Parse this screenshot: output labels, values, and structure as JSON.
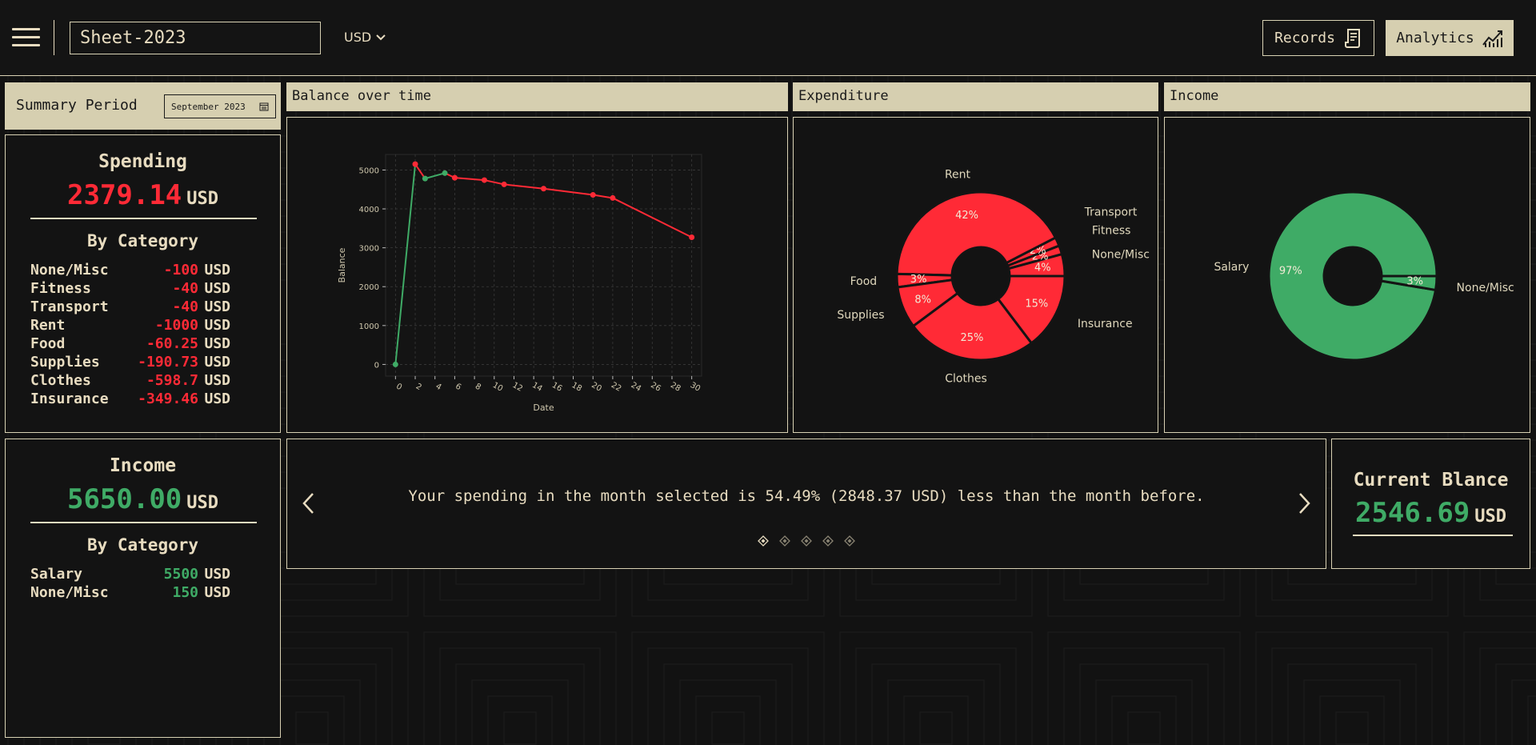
{
  "header": {
    "sheet_name": "Sheet-2023",
    "currency": "USD",
    "records_label": "Records",
    "analytics_label": "Analytics"
  },
  "summary": {
    "period_label": "Summary Period",
    "period_value": "September 2023"
  },
  "spending": {
    "title": "Spending",
    "amount": "2379.14",
    "unit": "USD",
    "by_category_label": "By Category",
    "categories": [
      {
        "name": "None/Misc",
        "value": "-100",
        "unit": "USD"
      },
      {
        "name": "Fitness",
        "value": "-40",
        "unit": "USD"
      },
      {
        "name": "Transport",
        "value": "-40",
        "unit": "USD"
      },
      {
        "name": "Rent",
        "value": "-1000",
        "unit": "USD"
      },
      {
        "name": "Food",
        "value": "-60.25",
        "unit": "USD"
      },
      {
        "name": "Supplies",
        "value": "-190.73",
        "unit": "USD"
      },
      {
        "name": "Clothes",
        "value": "-598.7",
        "unit": "USD"
      },
      {
        "name": "Insurance",
        "value": "-349.46",
        "unit": "USD"
      }
    ]
  },
  "income": {
    "title": "Income",
    "amount": "5650.00",
    "unit": "USD",
    "by_category_label": "By Category",
    "categories": [
      {
        "name": "Salary",
        "value": "5500",
        "unit": "USD"
      },
      {
        "name": "None/Misc",
        "value": "150",
        "unit": "USD"
      }
    ]
  },
  "panels": {
    "balance_title": "Balance over time",
    "expenditure_title": "Expenditure",
    "income_title": "Income"
  },
  "insight": {
    "text": "Your spending in the month selected is 54.49% (2848.37 USD) less than the month before.",
    "slide_count": 5,
    "active_slide": 0
  },
  "current_balance": {
    "title": "Current Blance",
    "amount": "2546.69",
    "unit": "USD"
  },
  "colors": {
    "accent": "#d6cfb0",
    "negative": "#ff2a36",
    "positive": "#3fab66",
    "background": "#121212"
  },
  "icons": {
    "menu": "hamburger-icon",
    "currency": "chevron-down-icon",
    "records": "receipt-icon",
    "analytics": "line-chart-icon",
    "period": "calendar-icon",
    "prev": "chevron-left-icon",
    "next": "chevron-right-icon"
  },
  "chart_data": [
    {
      "type": "line",
      "xlabel": "Date",
      "ylabel": "Balance",
      "xlim": [
        -1,
        31
      ],
      "ylim": [
        -300,
        5400
      ],
      "xticks": [
        0,
        2,
        4,
        6,
        8,
        10,
        12,
        14,
        16,
        18,
        20,
        22,
        24,
        26,
        28,
        30
      ],
      "yticks": [
        0,
        1000,
        2000,
        3000,
        4000,
        5000
      ],
      "grid": true,
      "points": [
        {
          "x": 0,
          "y": 0,
          "color": "green"
        },
        {
          "x": 2,
          "y": 5150,
          "color": "red"
        },
        {
          "x": 3,
          "y": 4780,
          "color": "green"
        },
        {
          "x": 5,
          "y": 4920,
          "color": "green"
        },
        {
          "x": 6,
          "y": 4800,
          "color": "red"
        },
        {
          "x": 9,
          "y": 4740,
          "color": "red"
        },
        {
          "x": 11,
          "y": 4630,
          "color": "red"
        },
        {
          "x": 15,
          "y": 4520,
          "color": "red"
        },
        {
          "x": 20,
          "y": 4360,
          "color": "red"
        },
        {
          "x": 22,
          "y": 4280,
          "color": "red"
        },
        {
          "x": 30,
          "y": 3270,
          "color": "red"
        }
      ]
    },
    {
      "type": "pie",
      "name": "expenditure",
      "donut": true,
      "color": "#ff2a36",
      "slices": [
        {
          "label": "None/Misc",
          "value": 100,
          "pct": "4%"
        },
        {
          "label": "Fitness",
          "value": 40,
          "pct": "2%"
        },
        {
          "label": "Transport",
          "value": 40,
          "pct": "2%"
        },
        {
          "label": "Rent",
          "value": 1000,
          "pct": "42%"
        },
        {
          "label": "Food",
          "value": 60.25,
          "pct": "3%"
        },
        {
          "label": "Supplies",
          "value": 190.73,
          "pct": "8%"
        },
        {
          "label": "Clothes",
          "value": 598.7,
          "pct": "25%"
        },
        {
          "label": "Insurance",
          "value": 349.46,
          "pct": "15%"
        }
      ]
    },
    {
      "type": "pie",
      "name": "income",
      "donut": true,
      "color": "#3fab66",
      "slices": [
        {
          "label": "Salary",
          "value": 5500,
          "pct": "97%"
        },
        {
          "label": "None/Misc",
          "value": 150,
          "pct": "3%"
        }
      ]
    }
  ]
}
